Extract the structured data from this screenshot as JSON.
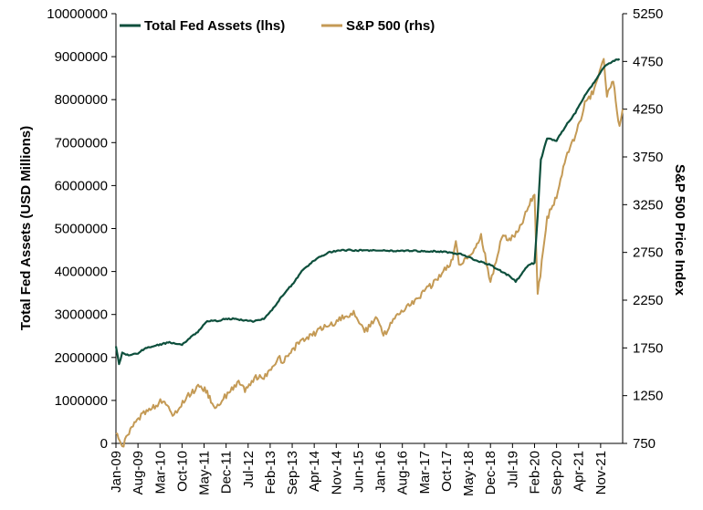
{
  "chart_data": {
    "type": "line",
    "title": "",
    "xlabel": "",
    "ylabel_left": "Total Fed Assets (USD Millions)",
    "ylabel_right": "S&P 500 Price Index",
    "grid": false,
    "legend_position": "top-left",
    "x_range": [
      "2009-01",
      "2022-06"
    ],
    "x_ticks": [
      "Jan-09",
      "Aug-09",
      "Mar-10",
      "Oct-10",
      "May-11",
      "Dec-11",
      "Jul-12",
      "Feb-13",
      "Sep-13",
      "Apr-14",
      "Nov-14",
      "Jun-15",
      "Jan-16",
      "Aug-16",
      "Mar-17",
      "Oct-17",
      "May-18",
      "Dec-18",
      "Jul-19",
      "Feb-20",
      "Sep-20",
      "Apr-21",
      "Nov-21"
    ],
    "y_left": {
      "min": 0,
      "max": 10000000,
      "ticks": [
        "0",
        "1000000",
        "2000000",
        "3000000",
        "4000000",
        "5000000",
        "6000000",
        "7000000",
        "8000000",
        "9000000",
        "10000000"
      ]
    },
    "y_right": {
      "min": 750,
      "max": 5250,
      "ticks": [
        "750",
        "1250",
        "1750",
        "2250",
        "2750",
        "3250",
        "3750",
        "4250",
        "4750",
        "5250"
      ]
    },
    "series": [
      {
        "name": "Total Fed Assets (lhs)",
        "axis": "left",
        "color": "#0d4f3c",
        "x": [
          "2009-01",
          "2009-02",
          "2009-03",
          "2009-05",
          "2009-08",
          "2009-10",
          "2009-12",
          "2010-03",
          "2010-06",
          "2010-10",
          "2010-12",
          "2011-03",
          "2011-06",
          "2011-09",
          "2011-12",
          "2012-03",
          "2012-06",
          "2012-09",
          "2012-12",
          "2013-03",
          "2013-06",
          "2013-09",
          "2013-12",
          "2014-03",
          "2014-06",
          "2014-09",
          "2014-12",
          "2015-06",
          "2015-12",
          "2016-06",
          "2016-12",
          "2017-06",
          "2017-10",
          "2018-03",
          "2018-06",
          "2018-12",
          "2019-06",
          "2019-08",
          "2019-09",
          "2019-12",
          "2020-02",
          "2020-03",
          "2020-04",
          "2020-06",
          "2020-09",
          "2020-12",
          "2021-03",
          "2021-06",
          "2021-09",
          "2021-12",
          "2022-03",
          "2022-05"
        ],
        "values": [
          2250000,
          1850000,
          2100000,
          2050000,
          2100000,
          2200000,
          2250000,
          2300000,
          2350000,
          2300000,
          2420000,
          2600000,
          2850000,
          2850000,
          2900000,
          2900000,
          2860000,
          2840000,
          2900000,
          3150000,
          3450000,
          3700000,
          4000000,
          4200000,
          4350000,
          4450000,
          4500000,
          4490000,
          4490000,
          4480000,
          4480000,
          4470000,
          4450000,
          4400000,
          4300000,
          4150000,
          3900000,
          3770000,
          3850000,
          4150000,
          4200000,
          5300000,
          6600000,
          7100000,
          7050000,
          7400000,
          7700000,
          8100000,
          8400000,
          8750000,
          8900000,
          8950000
        ]
      },
      {
        "name": "S&P 500 (rhs)",
        "axis": "right",
        "color": "#c49a55",
        "x": [
          "2009-01",
          "2009-03",
          "2009-06",
          "2009-09",
          "2009-12",
          "2010-04",
          "2010-07",
          "2010-12",
          "2011-04",
          "2011-06",
          "2011-08",
          "2011-12",
          "2012-04",
          "2012-06",
          "2012-09",
          "2012-12",
          "2013-05",
          "2013-06",
          "2013-12",
          "2014-03",
          "2014-06",
          "2014-09",
          "2014-12",
          "2015-05",
          "2015-08",
          "2015-12",
          "2016-02",
          "2016-06",
          "2016-09",
          "2016-12",
          "2017-06",
          "2017-12",
          "2018-01",
          "2018-02",
          "2018-06",
          "2018-09",
          "2018-12",
          "2019-04",
          "2019-06",
          "2019-09",
          "2019-12",
          "2020-02",
          "2020-03",
          "2020-06",
          "2020-09",
          "2020-12",
          "2021-03",
          "2021-06",
          "2021-09",
          "2021-12",
          "2022-01",
          "2022-03",
          "2022-05",
          "2022-06"
        ],
        "values": [
          850,
          700,
          920,
          1050,
          1110,
          1210,
          1030,
          1250,
          1360,
          1280,
          1120,
          1250,
          1400,
          1300,
          1440,
          1430,
          1650,
          1600,
          1840,
          1870,
          1960,
          1980,
          2060,
          2110,
          1920,
          2060,
          1880,
          2090,
          2170,
          2240,
          2430,
          2670,
          2870,
          2620,
          2720,
          2910,
          2450,
          2940,
          2890,
          2980,
          3230,
          3380,
          2300,
          3100,
          3350,
          3750,
          3970,
          4300,
          4450,
          4770,
          4400,
          4550,
          4050,
          4250
        ]
      }
    ]
  }
}
